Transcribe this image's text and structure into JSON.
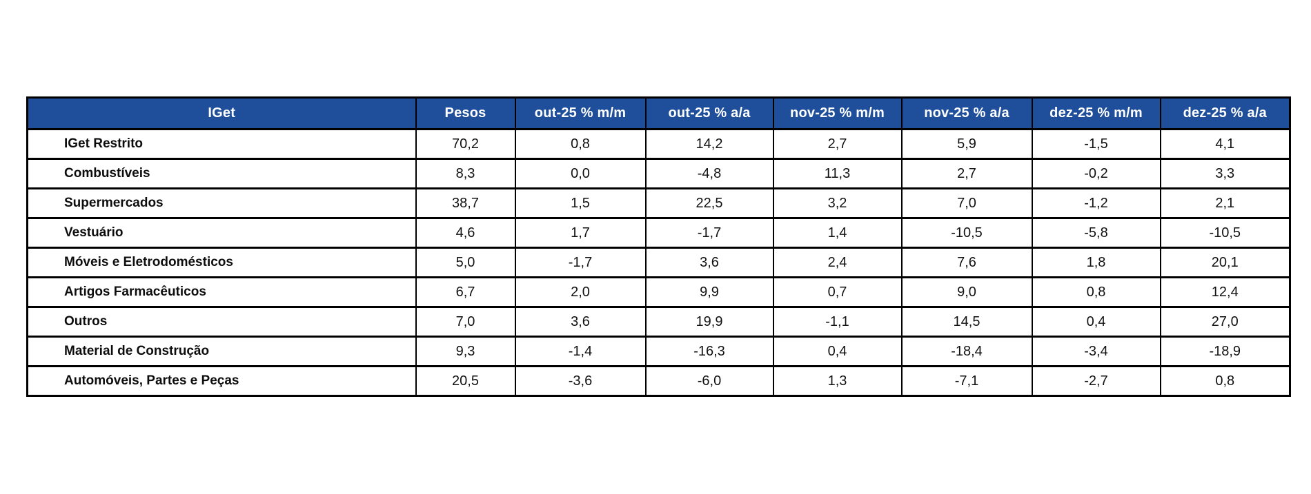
{
  "chart_data": {
    "type": "table",
    "title": "IGet",
    "columns": [
      "IGet",
      "Pesos",
      "out-25 % m/m",
      "out-25 % a/a",
      "nov-25 % m/m",
      "nov-25 % a/a",
      "dez-25 % m/m",
      "dez-25 % a/a"
    ],
    "rows": [
      {
        "label": "IGet Restrito",
        "values": [
          "70,2",
          "0,8",
          "14,2",
          "2,7",
          "5,9",
          "-1,5",
          "4,1"
        ]
      },
      {
        "label": "Combustíveis",
        "values": [
          "8,3",
          "0,0",
          "-4,8",
          "11,3",
          "2,7",
          "-0,2",
          "3,3"
        ]
      },
      {
        "label": "Supermercados",
        "values": [
          "38,7",
          "1,5",
          "22,5",
          "3,2",
          "7,0",
          "-1,2",
          "2,1"
        ]
      },
      {
        "label": "Vestuário",
        "values": [
          "4,6",
          "1,7",
          "-1,7",
          "1,4",
          "-10,5",
          "-5,8",
          "-10,5"
        ]
      },
      {
        "label": "Móveis e Eletrodomésticos",
        "values": [
          "5,0",
          "-1,7",
          "3,6",
          "2,4",
          "7,6",
          "1,8",
          "20,1"
        ]
      },
      {
        "label": "Artigos Farmacêuticos",
        "values": [
          "6,7",
          "2,0",
          "9,9",
          "0,7",
          "9,0",
          "0,8",
          "12,4"
        ]
      },
      {
        "label": "Outros",
        "values": [
          "7,0",
          "3,6",
          "19,9",
          "-1,1",
          "14,5",
          "0,4",
          "27,0"
        ]
      },
      {
        "label": "Material de Construção",
        "values": [
          "9,3",
          "-1,4",
          "-16,3",
          "0,4",
          "-18,4",
          "-3,4",
          "-18,9"
        ]
      },
      {
        "label": "Automóveis, Partes e Peças",
        "values": [
          "20,5",
          "-3,6",
          "-6,0",
          "1,3",
          "-7,1",
          "-2,7",
          "0,8"
        ]
      }
    ],
    "colors": {
      "header_bg": "#1F4E9B",
      "header_text": "#FFFFFF",
      "border": "#000000",
      "row_bg": "#FFFFFF"
    },
    "layout": {
      "legend": "none",
      "grid": "all-borders",
      "decimal_separator": ","
    }
  }
}
